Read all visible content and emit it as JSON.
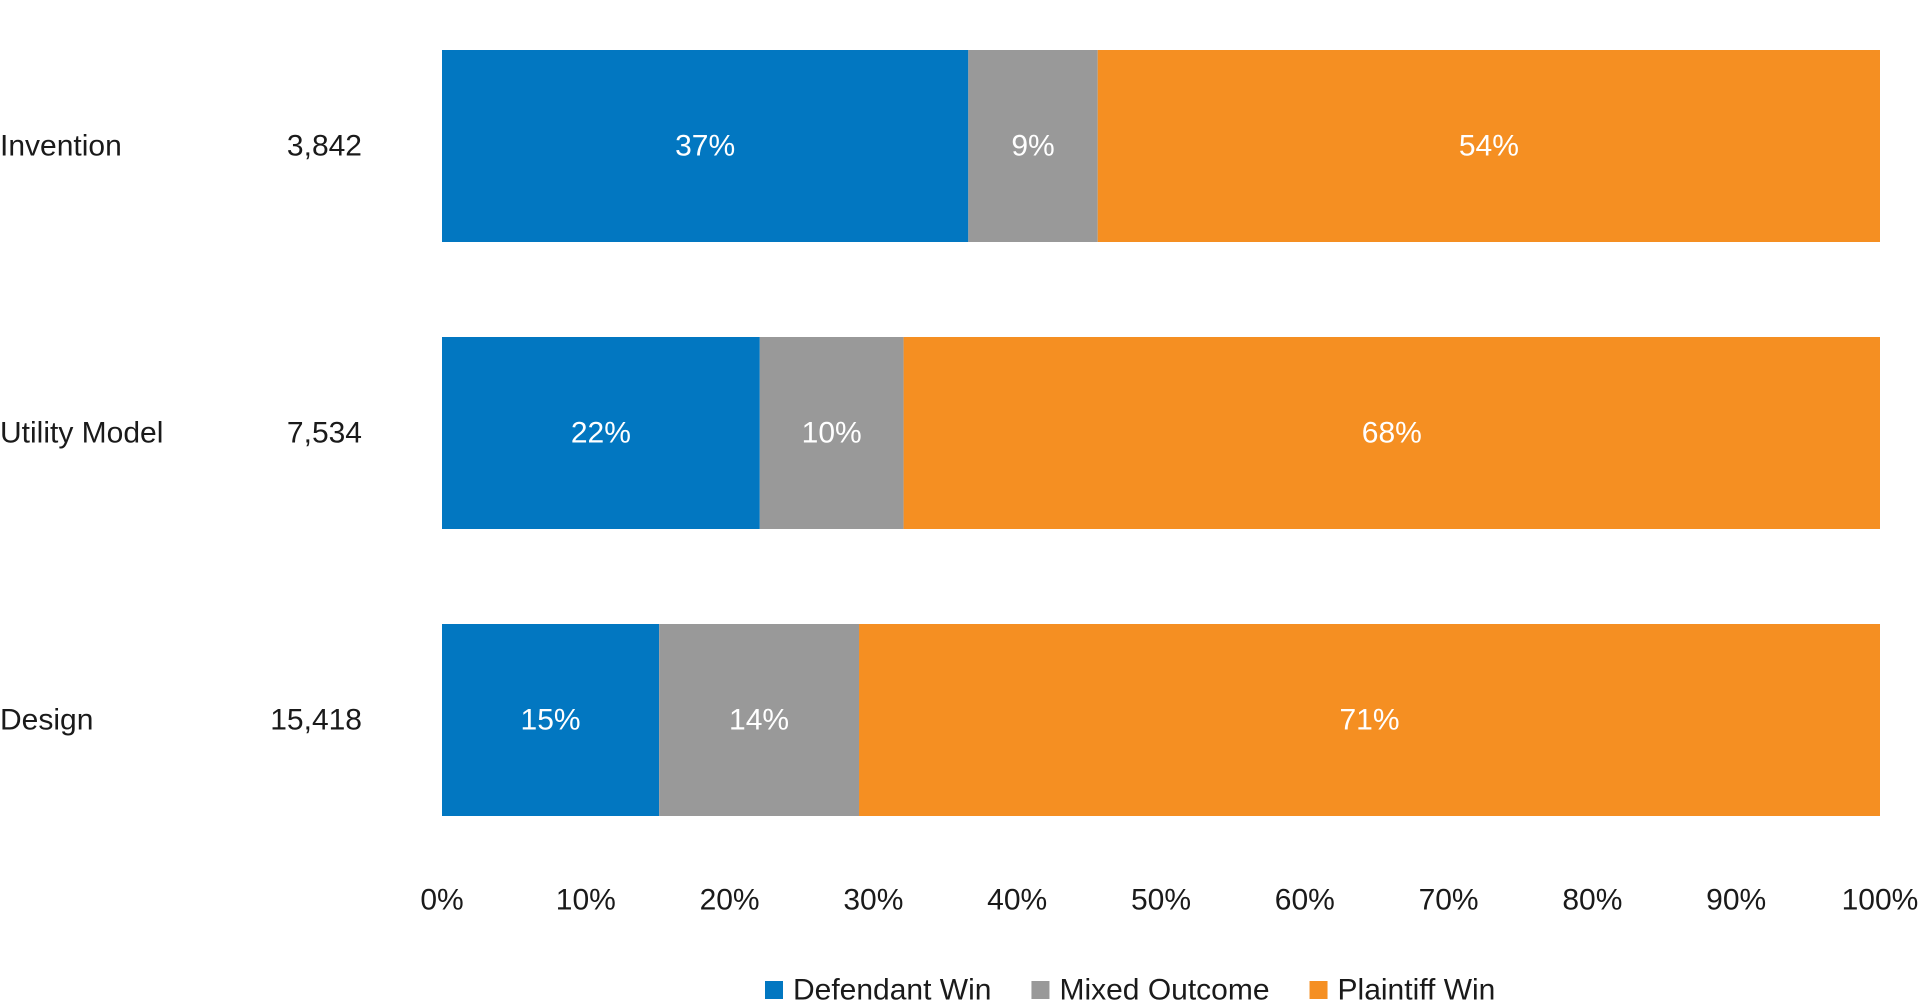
{
  "chart_data": {
    "type": "bar",
    "orientation": "horizontal",
    "stacked": true,
    "title": "",
    "xlabel": "",
    "ylabel": "",
    "xlim": [
      0,
      100
    ],
    "grid": false,
    "legend_position": "bottom",
    "categories": [
      "Invention",
      "Utility Model",
      "Design"
    ],
    "counts": [
      "3,842",
      "7,534",
      "15,418"
    ],
    "x_ticks": [
      "0%",
      "10%",
      "20%",
      "30%",
      "40%",
      "50%",
      "60%",
      "70%",
      "80%",
      "90%",
      "100%"
    ],
    "series": [
      {
        "name": "Defendant Win",
        "color": "#0277C1",
        "values": [
          36.6,
          22.1,
          15.1
        ],
        "labels": [
          "37%",
          "22%",
          "15%"
        ]
      },
      {
        "name": "Mixed Outcome",
        "color": "#999999",
        "values": [
          9.0,
          10.0,
          13.9
        ],
        "labels": [
          "9%",
          "10%",
          "14%"
        ]
      },
      {
        "name": "Plaintiff Win",
        "color": "#F58F22",
        "values": [
          54.4,
          67.9,
          71.0
        ],
        "labels": [
          "54%",
          "68%",
          "71%"
        ]
      }
    ]
  }
}
